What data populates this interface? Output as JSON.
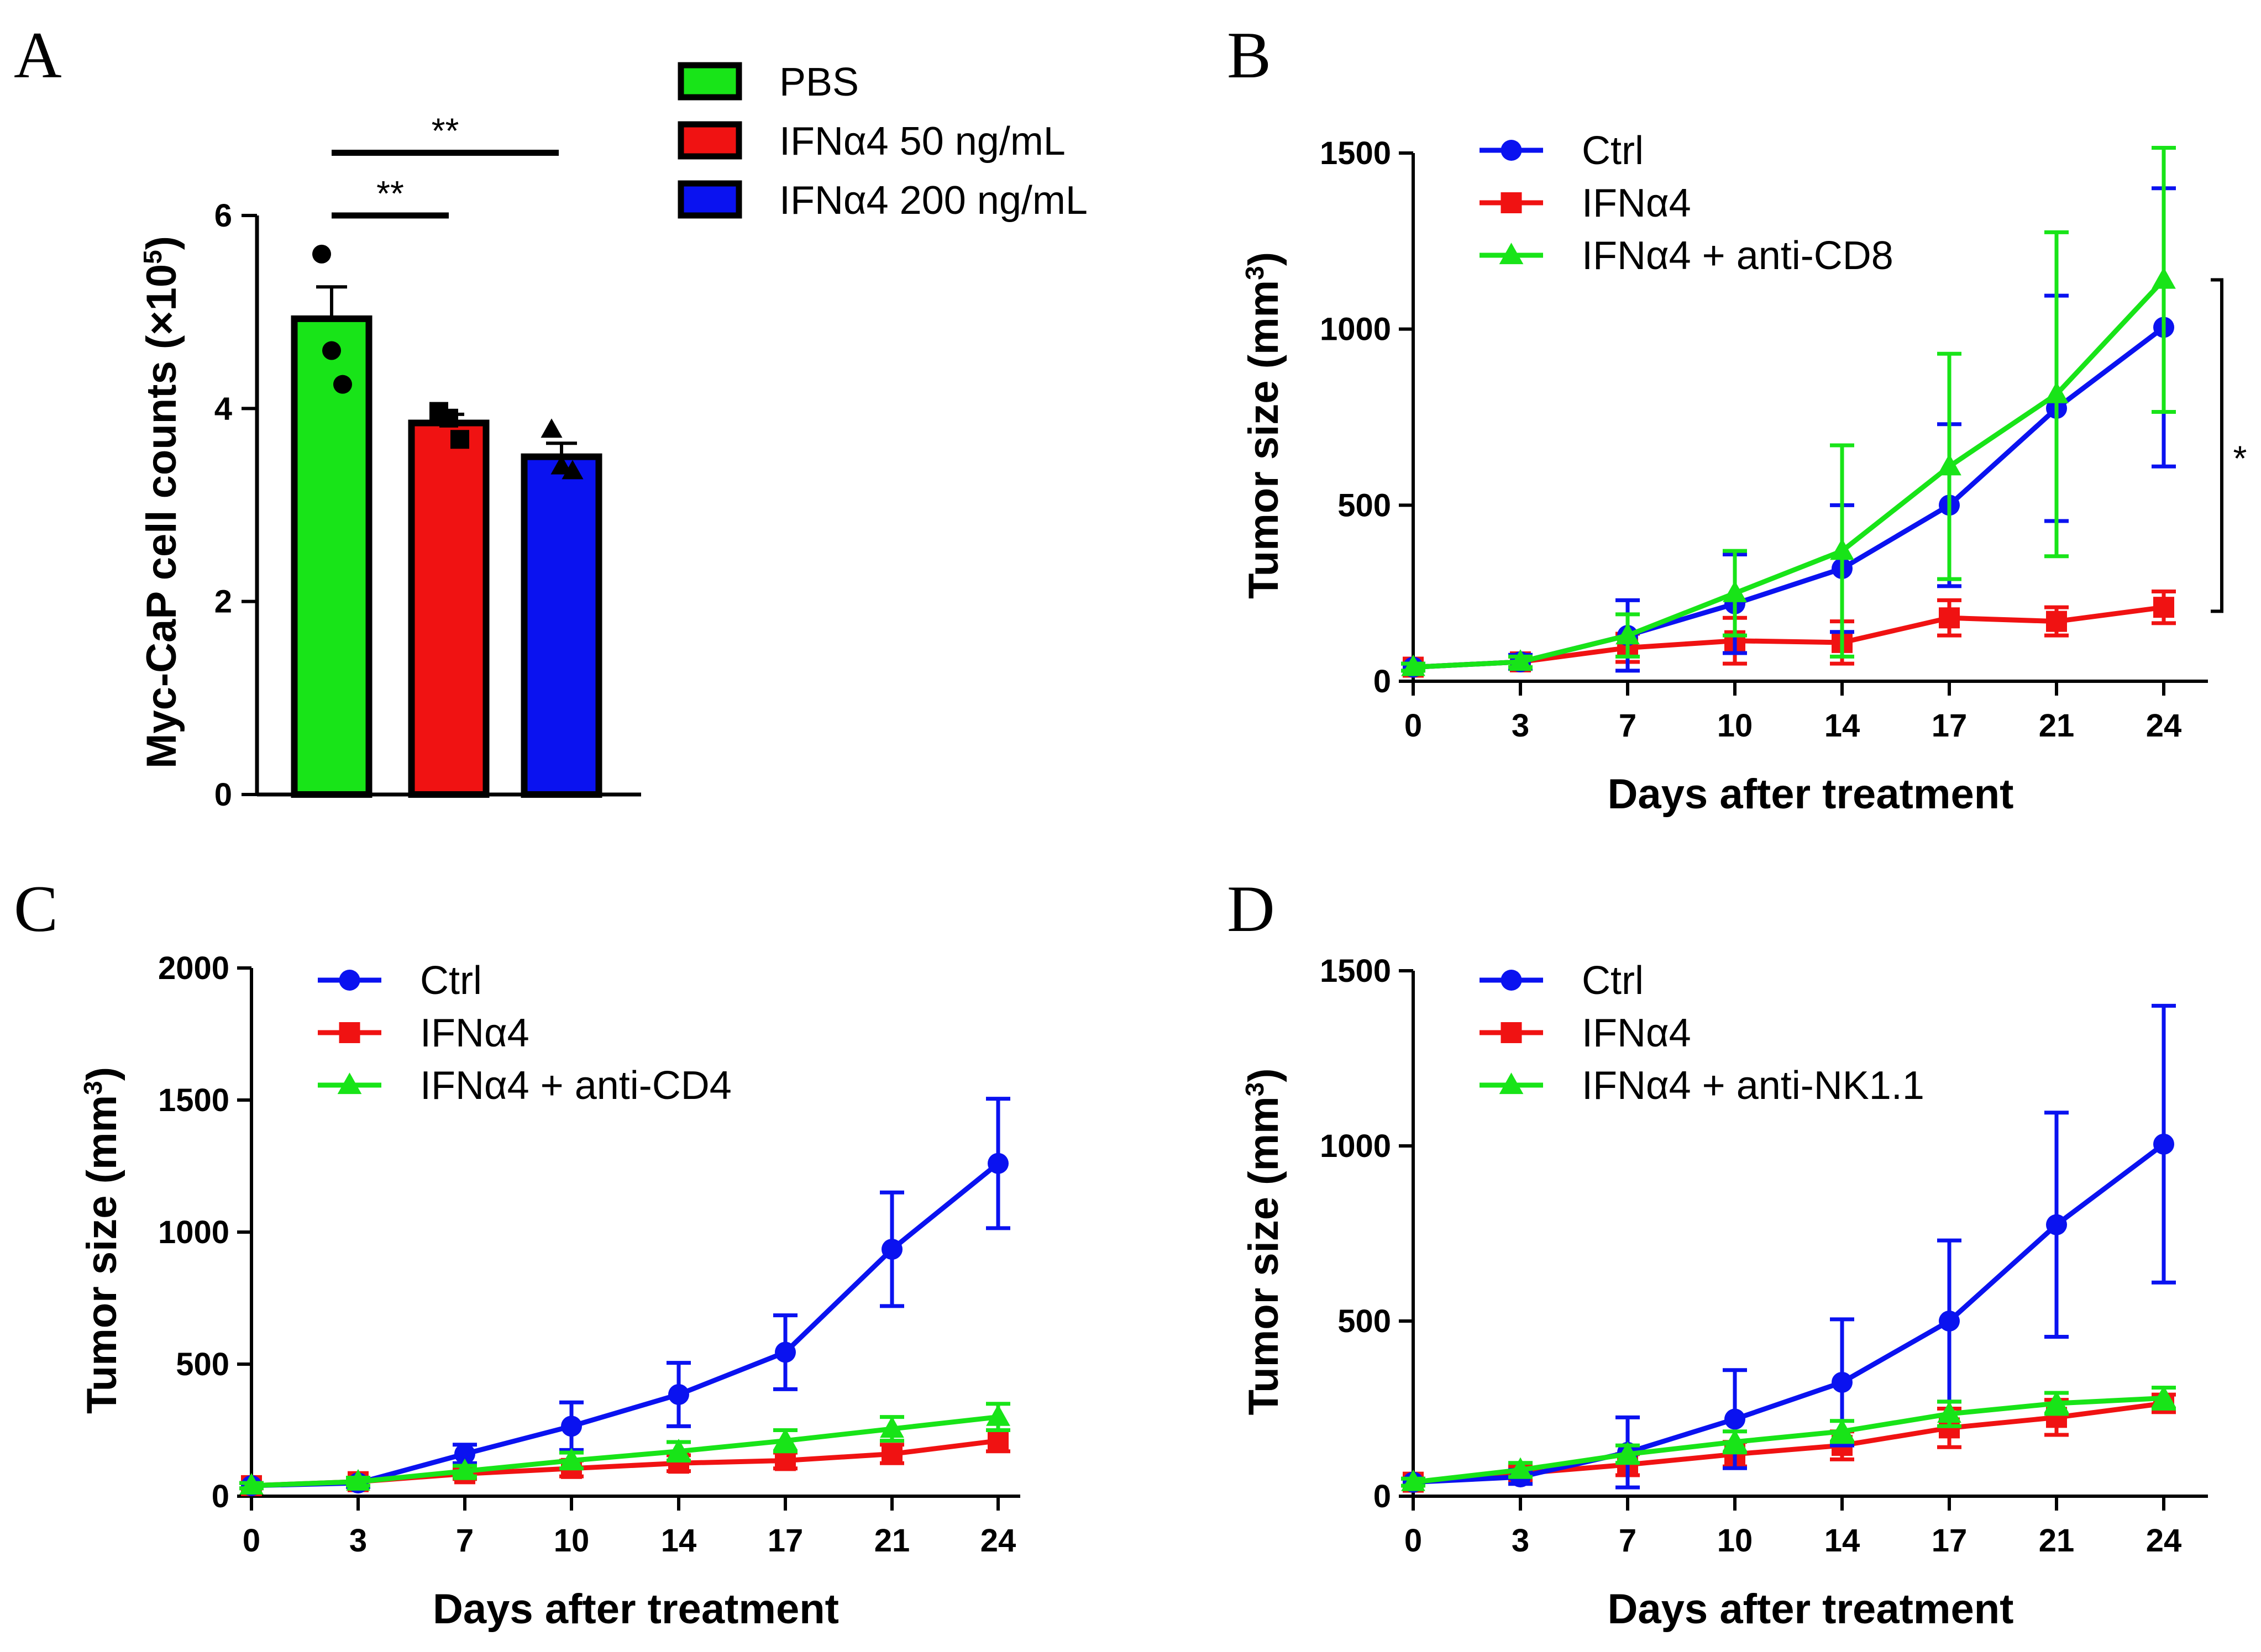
{
  "colors": {
    "blue": "#0a12f0",
    "red": "#f01212",
    "green": "#18e418",
    "black": "#000000"
  },
  "panels": {
    "A": "A",
    "B": "B",
    "C": "C",
    "D": "D"
  },
  "chart_data": [
    {
      "id": "A",
      "type": "bar",
      "title": "",
      "xlabel": "",
      "ylabel": "Myc-CaP cell counts (×10",
      "ylabel_sup": "5",
      "ylabel_close": ")",
      "ylim": [
        0,
        6
      ],
      "yticks": [
        0,
        2,
        4,
        6
      ],
      "legend_position": "top-right",
      "bars": [
        {
          "name": "PBS",
          "value": 4.93,
          "sem": 0.33,
          "color": "#18e418",
          "marker": "circle",
          "points": [
            5.6,
            4.6,
            4.25
          ]
        },
        {
          "name": "IFNα4 50 ng/mL",
          "value": 3.85,
          "sem": 0.09,
          "color": "#f01212",
          "marker": "square",
          "points": [
            3.97,
            3.9,
            3.68
          ]
        },
        {
          "name": "IFNα4 200 ng/mL",
          "value": 3.5,
          "sem": 0.14,
          "color": "#0a12f0",
          "marker": "triangle",
          "points": [
            3.78,
            3.4,
            3.35
          ]
        }
      ],
      "significance": [
        {
          "from": 0,
          "to": 2,
          "label": "**",
          "y": 6.65
        },
        {
          "from": 0,
          "to": 1,
          "label": "**",
          "y": 6.0
        }
      ]
    },
    {
      "id": "B",
      "type": "line",
      "title": "",
      "xlabel": "Days after treatment",
      "ylabel": "Tumor size (mm",
      "ylabel_sup": "3",
      "ylabel_close": ")",
      "x": [
        0,
        3,
        7,
        10,
        14,
        17,
        21,
        24
      ],
      "ylim": [
        0,
        1500
      ],
      "yticks": [
        0,
        500,
        1000,
        1500
      ],
      "legend_position": "top-left",
      "series": [
        {
          "name": "Ctrl",
          "color": "#0a12f0",
          "marker": "circle",
          "values": [
            40,
            55,
            130,
            220,
            320,
            500,
            775,
            1005
          ],
          "err": [
            10,
            20,
            100,
            140,
            180,
            230,
            320,
            395
          ]
        },
        {
          "name": "IFNα4",
          "color": "#f01212",
          "marker": "square",
          "values": [
            40,
            55,
            95,
            115,
            110,
            180,
            170,
            210
          ],
          "err": [
            10,
            15,
            40,
            65,
            60,
            50,
            40,
            45
          ]
        },
        {
          "name": "IFNα4 + anti-CD8",
          "color": "#18e418",
          "marker": "triangle",
          "values": [
            40,
            55,
            130,
            250,
            370,
            610,
            815,
            1140
          ],
          "err": [
            10,
            15,
            60,
            120,
            300,
            320,
            460,
            375
          ]
        }
      ],
      "significance": [
        {
          "between": "Ctrl / IFNα4 + anti-CD8 vs IFNα4",
          "label": "*",
          "y_range": [
            230,
            1140
          ]
        }
      ]
    },
    {
      "id": "C",
      "type": "line",
      "title": "",
      "xlabel": "Days after treatment",
      "ylabel": "Tumor size (mm",
      "ylabel_sup": "3",
      "ylabel_close": ")",
      "x": [
        0,
        3,
        7,
        10,
        14,
        17,
        21,
        24
      ],
      "ylim": [
        0,
        2000
      ],
      "yticks": [
        0,
        500,
        1000,
        1500,
        2000
      ],
      "legend_position": "top-left",
      "series": [
        {
          "name": "Ctrl",
          "color": "#0a12f0",
          "marker": "circle",
          "values": [
            40,
            50,
            160,
            265,
            385,
            545,
            935,
            1260
          ],
          "err": [
            10,
            15,
            35,
            90,
            120,
            140,
            215,
            245
          ]
        },
        {
          "name": "IFNα4",
          "color": "#f01212",
          "marker": "square",
          "values": [
            40,
            55,
            85,
            105,
            125,
            135,
            160,
            210
          ],
          "err": [
            10,
            15,
            20,
            30,
            30,
            30,
            35,
            40
          ]
        },
        {
          "name": "IFNα4 + anti-CD4",
          "color": "#18e418",
          "marker": "triangle",
          "values": [
            40,
            55,
            95,
            135,
            170,
            210,
            255,
            300
          ],
          "err": [
            10,
            15,
            20,
            30,
            35,
            40,
            45,
            50
          ]
        }
      ]
    },
    {
      "id": "D",
      "type": "line",
      "title": "",
      "xlabel": "Days after treatment",
      "ylabel": "Tumor size (mm",
      "ylabel_sup": "3",
      "ylabel_close": ")",
      "x": [
        0,
        3,
        7,
        10,
        14,
        17,
        21,
        24
      ],
      "ylim": [
        0,
        1500
      ],
      "yticks": [
        0,
        500,
        1000,
        1500
      ],
      "legend_position": "top-left",
      "series": [
        {
          "name": "Ctrl",
          "color": "#0a12f0",
          "marker": "circle",
          "values": [
            40,
            55,
            125,
            220,
            325,
            500,
            775,
            1005
          ],
          "err": [
            10,
            20,
            100,
            140,
            180,
            230,
            320,
            395
          ]
        },
        {
          "name": "IFNα4",
          "color": "#f01212",
          "marker": "square",
          "values": [
            40,
            65,
            90,
            120,
            145,
            195,
            225,
            265
          ],
          "err": [
            10,
            20,
            30,
            35,
            40,
            55,
            50,
            25
          ]
        },
        {
          "name": "IFNα4 + anti-NK1.1",
          "color": "#18e418",
          "marker": "triangle",
          "values": [
            40,
            75,
            120,
            155,
            185,
            235,
            265,
            280
          ],
          "err": [
            10,
            20,
            25,
            30,
            30,
            35,
            30,
            30
          ]
        }
      ]
    }
  ]
}
